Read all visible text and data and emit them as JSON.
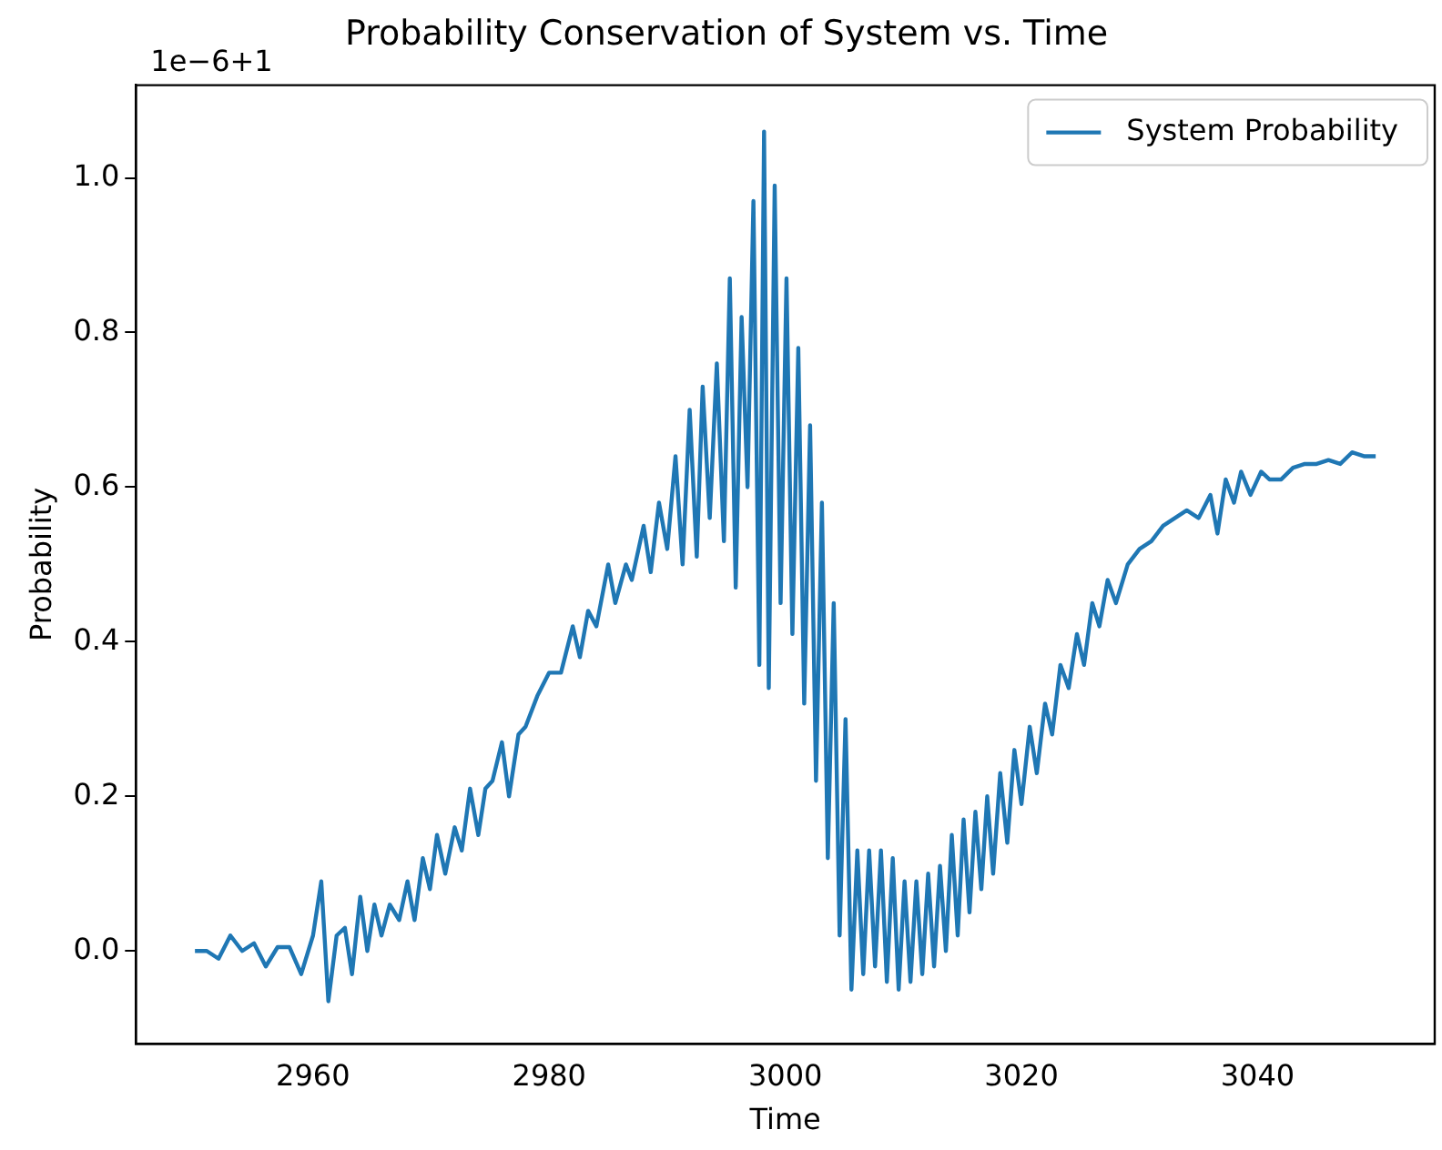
{
  "chart_data": {
    "type": "line",
    "title": "Probability Conservation of System vs. Time",
    "xlabel": "Time",
    "ylabel": "Probability",
    "annotations": [
      "1e−6+1"
    ],
    "xlim": [
      2945,
      3055
    ],
    "xticks": [
      2960,
      2980,
      3000,
      3020,
      3040
    ],
    "ylim": [
      -0.12,
      1.12
    ],
    "yticks": [
      {
        "value": 0,
        "label": "0.0"
      },
      {
        "value": 0.2,
        "label": "0.2"
      },
      {
        "value": 0.4,
        "label": "0.4"
      },
      {
        "value": 0.6,
        "label": "0.6"
      },
      {
        "value": 0.8,
        "label": "0.8"
      },
      {
        "value": 1,
        "label": "1.0"
      }
    ],
    "legend": "top right",
    "grid": false,
    "marker": "none",
    "line_style": "solid",
    "series": [
      {
        "name": "System Probability",
        "color": "#1f77b4",
        "x": [
          2950,
          2951,
          2952,
          2953,
          2954,
          2955,
          2956,
          2957,
          2958,
          2959,
          2960,
          2960.7,
          2961.3,
          2962,
          2962.7,
          2963.3,
          2964,
          2964.6,
          2965.2,
          2965.8,
          2966.5,
          2967.3,
          2968,
          2968.6,
          2969.3,
          2969.9,
          2970.5,
          2971.2,
          2972,
          2972.6,
          2973.3,
          2974,
          2974.6,
          2975.2,
          2976,
          2976.6,
          2977.4,
          2978,
          2979,
          2980,
          2981,
          2982,
          2982.6,
          2983.3,
          2984,
          2985,
          2985.6,
          2986.5,
          2987,
          2988,
          2988.6,
          2989.3,
          2990,
          2990.7,
          2991.3,
          2991.9,
          2992.5,
          2993,
          2993.6,
          2994.2,
          2994.8,
          2995.3,
          2995.8,
          2996.3,
          2996.8,
          2997.3,
          2997.8,
          2998.2,
          2998.6,
          2999.1,
          2999.6,
          3000.1,
          3000.6,
          3001.1,
          3001.6,
          3002.1,
          3002.6,
          3003.1,
          3003.6,
          3004.1,
          3004.6,
          3005.1,
          3005.6,
          3006.1,
          3006.6,
          3007.1,
          3007.6,
          3008.1,
          3008.6,
          3009.1,
          3009.6,
          3010.1,
          3010.6,
          3011.1,
          3011.6,
          3012.1,
          3012.6,
          3013.1,
          3013.6,
          3014.1,
          3014.6,
          3015.1,
          3015.6,
          3016.1,
          3016.6,
          3017.1,
          3017.6,
          3018.2,
          3018.8,
          3019.4,
          3020,
          3020.7,
          3021.3,
          3022,
          3022.6,
          3023.3,
          3024,
          3024.7,
          3025.3,
          3026,
          3026.6,
          3027.3,
          3028,
          3029,
          3030,
          3031,
          3032,
          3033,
          3034,
          3035,
          3036,
          3036.6,
          3037.3,
          3038,
          3038.6,
          3039.4,
          3040.3,
          3041,
          3042,
          3043,
          3044,
          3045,
          3046,
          3047,
          3048,
          3049,
          3050
        ],
        "values": [
          0,
          0,
          -0.01,
          0.02,
          0,
          0.01,
          -0.02,
          0.005,
          0.005,
          -0.03,
          0.02,
          0.09,
          -0.065,
          0.02,
          0.03,
          -0.03,
          0.07,
          0,
          0.06,
          0.02,
          0.06,
          0.04,
          0.09,
          0.04,
          0.12,
          0.08,
          0.15,
          0.1,
          0.16,
          0.13,
          0.21,
          0.15,
          0.21,
          0.22,
          0.27,
          0.2,
          0.28,
          0.29,
          0.33,
          0.36,
          0.36,
          0.42,
          0.38,
          0.44,
          0.42,
          0.5,
          0.45,
          0.5,
          0.48,
          0.55,
          0.49,
          0.58,
          0.52,
          0.64,
          0.5,
          0.7,
          0.51,
          0.73,
          0.56,
          0.76,
          0.53,
          0.87,
          0.47,
          0.82,
          0.6,
          0.97,
          0.37,
          1.06,
          0.34,
          0.99,
          0.45,
          0.87,
          0.41,
          0.78,
          0.32,
          0.68,
          0.22,
          0.58,
          0.12,
          0.45,
          0.02,
          0.3,
          -0.05,
          0.13,
          -0.03,
          0.13,
          -0.02,
          0.13,
          -0.04,
          0.12,
          -0.05,
          0.09,
          -0.04,
          0.09,
          -0.03,
          0.1,
          -0.02,
          0.11,
          0,
          0.15,
          0.02,
          0.17,
          0.05,
          0.18,
          0.08,
          0.2,
          0.1,
          0.23,
          0.14,
          0.26,
          0.19,
          0.29,
          0.23,
          0.32,
          0.28,
          0.37,
          0.34,
          0.41,
          0.37,
          0.45,
          0.42,
          0.48,
          0.45,
          0.5,
          0.52,
          0.53,
          0.55,
          0.56,
          0.57,
          0.56,
          0.59,
          0.54,
          0.61,
          0.58,
          0.62,
          0.59,
          0.62,
          0.61,
          0.61,
          0.625,
          0.63,
          0.63,
          0.635,
          0.63,
          0.645,
          0.64,
          0.64
        ]
      }
    ]
  }
}
